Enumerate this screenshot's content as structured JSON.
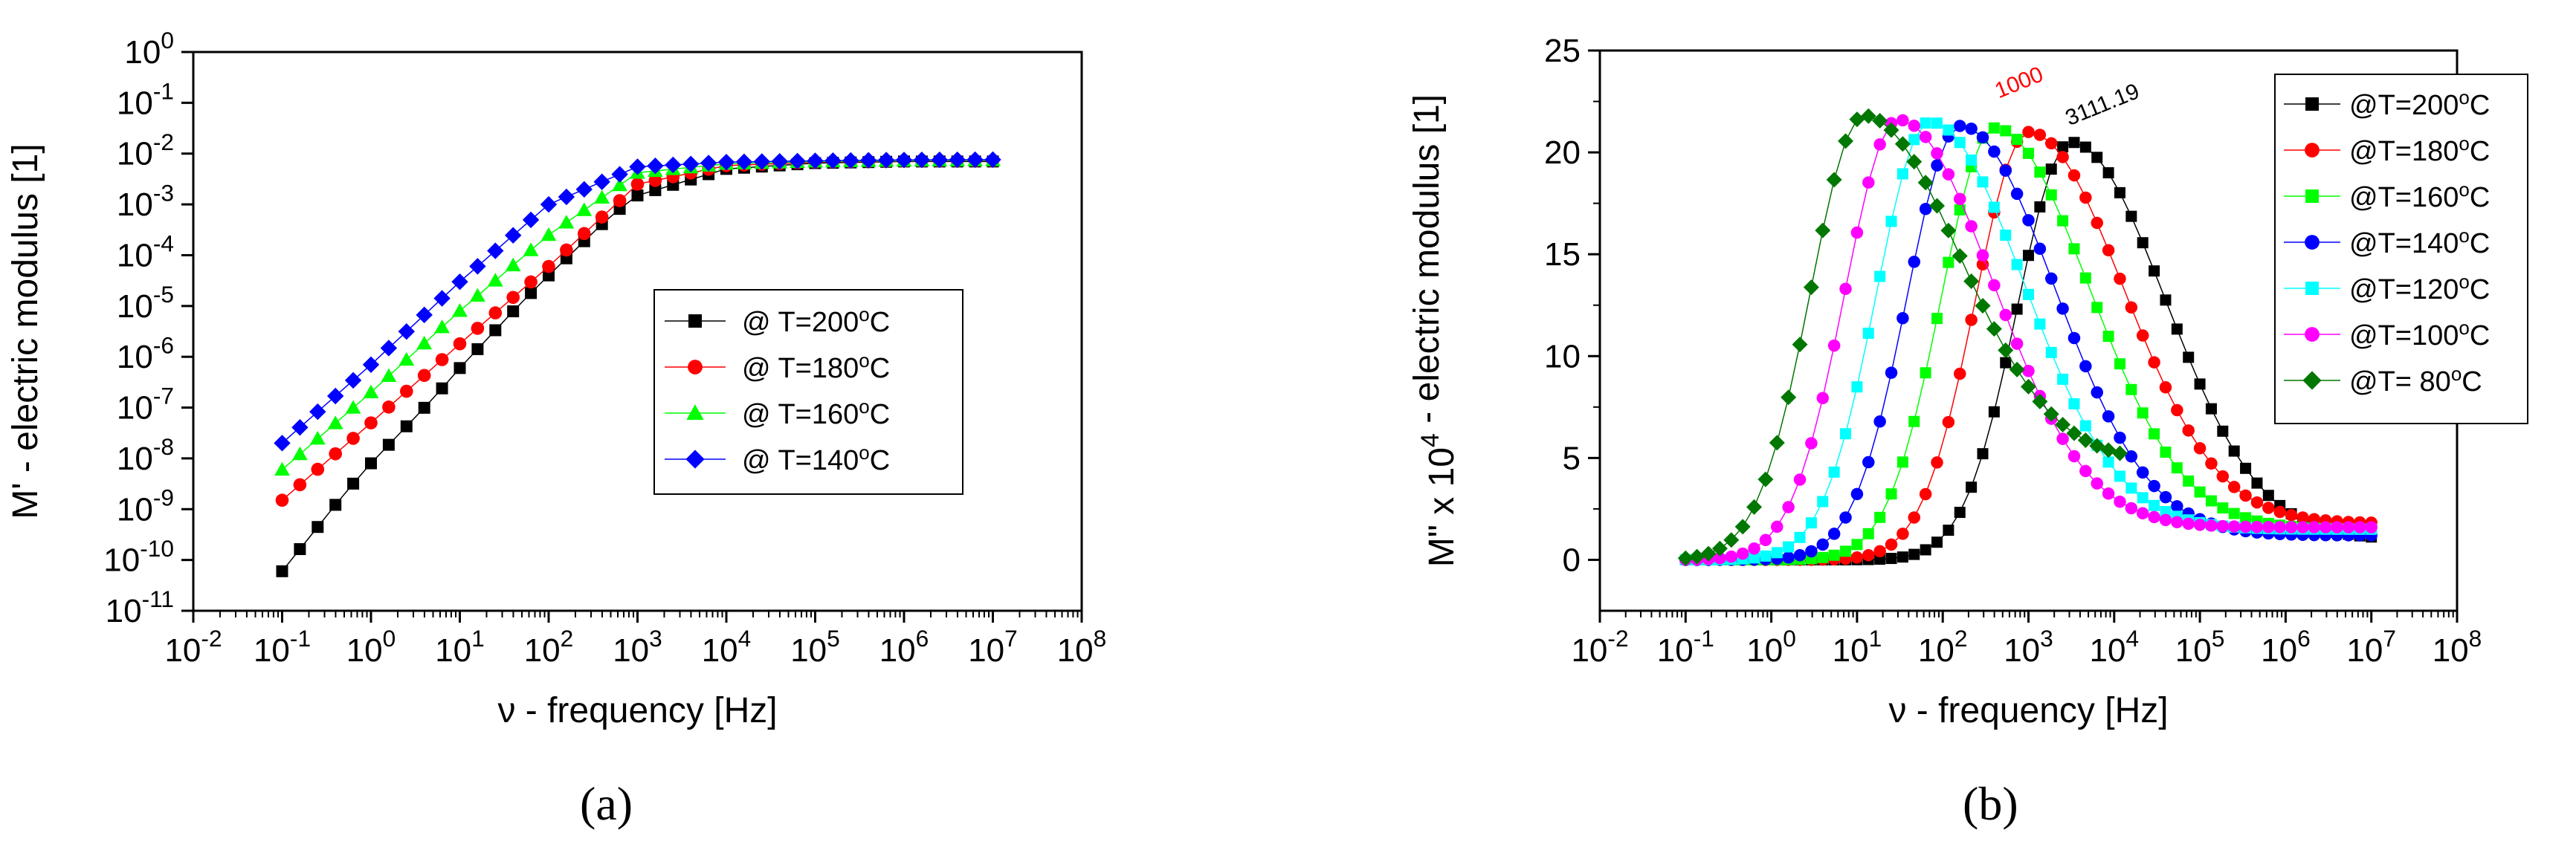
{
  "figure": {
    "captions": [
      "(a)",
      "(b)"
    ]
  },
  "chart_data": [
    {
      "type": "scatter",
      "panel": "(a)",
      "xlabel": "ν - frequency    [Hz]",
      "ylabel": "M' - electric modulus    [1]",
      "x_scale": "log",
      "y_scale": "log",
      "xlim": [
        0.01,
        100000000
      ],
      "ylim": [
        1e-11,
        1
      ],
      "x_ticks": [
        "10^-2",
        "10^-1",
        "10^0",
        "10^1",
        "10^2",
        "10^3",
        "10^4",
        "10^5",
        "10^6",
        "10^7",
        "10^8"
      ],
      "y_ticks": [
        "10^-11",
        "10^-10",
        "10^-9",
        "10^-8",
        "10^-7",
        "10^-6",
        "10^-5",
        "10^-4",
        "10^-3",
        "10^-2",
        "10^-1",
        "10^0"
      ],
      "legend_position": "right-center",
      "series": [
        {
          "name": "@ T=200°C",
          "color": "#000000",
          "marker": "square",
          "x": [
            0.1,
            0.5,
            1,
            5,
            10,
            50,
            100,
            500,
            1000,
            10000,
            100000,
            1000000,
            10000000
          ],
          "y": [
            6e-11,
            2e-09,
            8e-09,
            1.5e-07,
            6e-07,
            1.2e-05,
            4e-05,
            0.0006,
            0.0015,
            0.005,
            0.0065,
            0.007,
            0.007
          ]
        },
        {
          "name": "@ T=180°C",
          "color": "#ff0000",
          "marker": "circle",
          "x": [
            0.1,
            1,
            10,
            100,
            1000,
            10000,
            100000,
            1000000,
            10000000
          ],
          "y": [
            1.5e-09,
            5e-08,
            1.8e-06,
            6e-05,
            0.0025,
            0.0058,
            0.0068,
            0.0072,
            0.0073
          ]
        },
        {
          "name": "@ T=160°C",
          "color": "#00ff00",
          "marker": "triangle",
          "x": [
            0.1,
            1,
            10,
            100,
            1000,
            10000,
            100000,
            1000000,
            10000000
          ],
          "y": [
            6e-09,
            2e-07,
            8e-06,
            0.00025,
            0.0042,
            0.0063,
            0.007,
            0.0073,
            0.0074
          ]
        },
        {
          "name": "@ T=140°C",
          "color": "#0000ff",
          "marker": "diamond",
          "x": [
            0.1,
            1,
            10,
            100,
            1000,
            10000,
            100000,
            1000000,
            10000000
          ],
          "y": [
            2e-08,
            7e-07,
            3e-05,
            0.001,
            0.0055,
            0.0068,
            0.0072,
            0.0075,
            0.0076
          ]
        }
      ]
    },
    {
      "type": "scatter",
      "panel": "(b)",
      "xlabel": "ν - frequency    [Hz]",
      "ylabel": "M\" x 10^4 - electric modulus    [1]",
      "x_scale": "log",
      "xlim": [
        0.01,
        100000000
      ],
      "ylim": [
        -2.5,
        25
      ],
      "x_ticks": [
        "10^-2",
        "10^-1",
        "10^0",
        "10^1",
        "10^2",
        "10^3",
        "10^4",
        "10^5",
        "10^6",
        "10^7",
        "10^8"
      ],
      "y_ticks": [
        0,
        5,
        10,
        15,
        20,
        25
      ],
      "legend_position": "top-right",
      "annotations": [
        {
          "text": "1000",
          "color": "#ff0000",
          "x": 1000,
          "y": 21
        },
        {
          "text": "3111.19",
          "color": "#000000",
          "x": 3111.19,
          "y": 20.5
        }
      ],
      "series": [
        {
          "name": "@T=200°C",
          "color": "#000000",
          "marker": "square",
          "peak_f": 3111.19,
          "peak_h": 20.5,
          "tail_y": 1.0
        },
        {
          "name": "@T=180°C",
          "color": "#ff0000",
          "marker": "circle",
          "peak_f": 1000,
          "peak_h": 21.0,
          "tail_y": 1.8
        },
        {
          "name": "@T=160°C",
          "color": "#00ff00",
          "marker": "square",
          "peak_f": 400,
          "peak_h": 21.2,
          "tail_y": 1.5
        },
        {
          "name": "@T=140°C",
          "color": "#0000ff",
          "marker": "circle",
          "peak_f": 160,
          "peak_h": 21.3,
          "tail_y": 1.2
        },
        {
          "name": "@T=120°C",
          "color": "#00ffff",
          "marker": "square",
          "peak_f": 70,
          "peak_h": 21.5,
          "tail_y": 1.5
        },
        {
          "name": "@T=100°C",
          "color": "#ff00ff",
          "marker": "circle",
          "peak_f": 30,
          "peak_h": 21.6,
          "tail_y": 1.6
        },
        {
          "name": "@T= 80°C",
          "color": "#007700",
          "marker": "diamond",
          "peak_f": 12,
          "peak_h": 21.8,
          "tail_y": 4.8,
          "tail_end": 12000
        }
      ]
    }
  ]
}
